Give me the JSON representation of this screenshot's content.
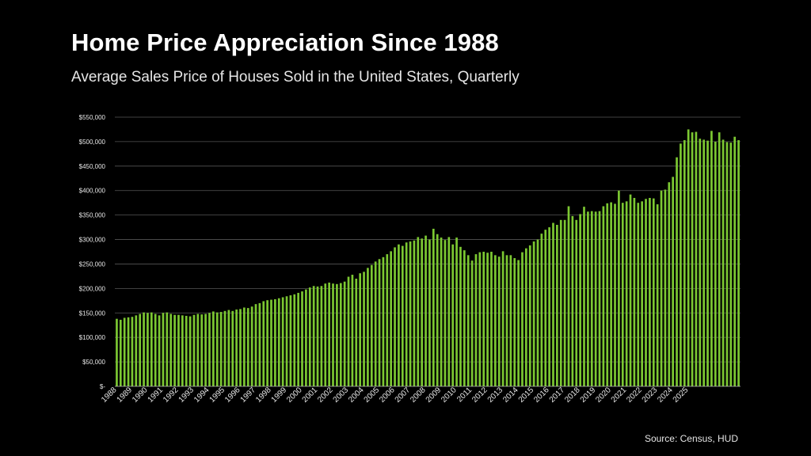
{
  "slide": {
    "title": "Home Price Appreciation Since 1988",
    "subtitle": "Average Sales Price of Houses Sold in the United States, Quarterly",
    "source": "Source: Census, HUD"
  },
  "chart_data": {
    "type": "bar",
    "title": "Home Price Appreciation Since 1988",
    "subtitle": "Average Sales Price of Houses Sold in the United States, Quarterly",
    "xlabel": "",
    "ylabel": "",
    "ylim": [
      0,
      550000
    ],
    "y_ticks": [
      0,
      50000,
      100000,
      150000,
      200000,
      250000,
      300000,
      350000,
      400000,
      450000,
      500000,
      550000
    ],
    "y_tick_labels": [
      "$-",
      "$50,000",
      "$100,000",
      "$150,000",
      "$200,000",
      "$250,000",
      "$300,000",
      "$350,000",
      "$400,000",
      "$450,000",
      "$500,000",
      "$550,000"
    ],
    "x_tick_labels": [
      "1988",
      "1989",
      "1990",
      "1991",
      "1992",
      "1993",
      "1994",
      "1995",
      "1996",
      "1997",
      "1998",
      "1999",
      "2000",
      "2001",
      "2002",
      "2003",
      "2004",
      "2005",
      "2006",
      "2007",
      "2008",
      "2009",
      "2010",
      "2011",
      "2012",
      "2013",
      "2014",
      "2015",
      "2016",
      "2017",
      "2018",
      "2019",
      "2020",
      "2021",
      "2022",
      "2023",
      "2024",
      "2025"
    ],
    "bar_color": "#7CC832",
    "grid": true,
    "series": [
      {
        "values": [
          138000,
          136000,
          140000,
          141000,
          142000,
          145000,
          148000,
          151000,
          150000,
          151000,
          148000,
          145000,
          150000,
          151000,
          148000,
          146000,
          146000,
          145000,
          144000,
          143000,
          146000,
          148000,
          147000,
          148000,
          150000,
          153000,
          151000,
          152000,
          154000,
          156000,
          154000,
          157000,
          158000,
          161000,
          160000,
          163000,
          168000,
          170000,
          174000,
          176000,
          177000,
          178000,
          180000,
          182000,
          184000,
          186000,
          188000,
          191000,
          194000,
          198000,
          202000,
          205000,
          204000,
          205000,
          210000,
          212000,
          210000,
          209000,
          211000,
          214000,
          224000,
          228000,
          220000,
          231000,
          234000,
          242000,
          248000,
          255000,
          260000,
          264000,
          270000,
          276000,
          284000,
          290000,
          287000,
          294000,
          296000,
          298000,
          305000,
          302000,
          308000,
          300000,
          322000,
          311000,
          304000,
          299000,
          305000,
          290000,
          304000,
          285000,
          278000,
          268000,
          257000,
          270000,
          274000,
          275000,
          273000,
          275000,
          268000,
          265000,
          276000,
          268000,
          268000,
          262000,
          258000,
          274000,
          282000,
          288000,
          296000,
          300000,
          312000,
          320000,
          325000,
          334000,
          330000,
          340000,
          340000,
          368000,
          348000,
          340000,
          352000,
          367000,
          357000,
          358000,
          357000,
          358000,
          368000,
          374000,
          376000,
          373000,
          400000,
          375000,
          378000,
          392000,
          385000,
          375000,
          378000,
          383000,
          385000,
          384000,
          372000,
          400000,
          402000,
          417000,
          428000,
          468000,
          496000,
          503000,
          525000,
          519000,
          520000,
          506000,
          504000,
          502000,
          522000,
          500000,
          519000,
          504000,
          499000,
          498000,
          510000,
          503000
        ]
      }
    ]
  }
}
